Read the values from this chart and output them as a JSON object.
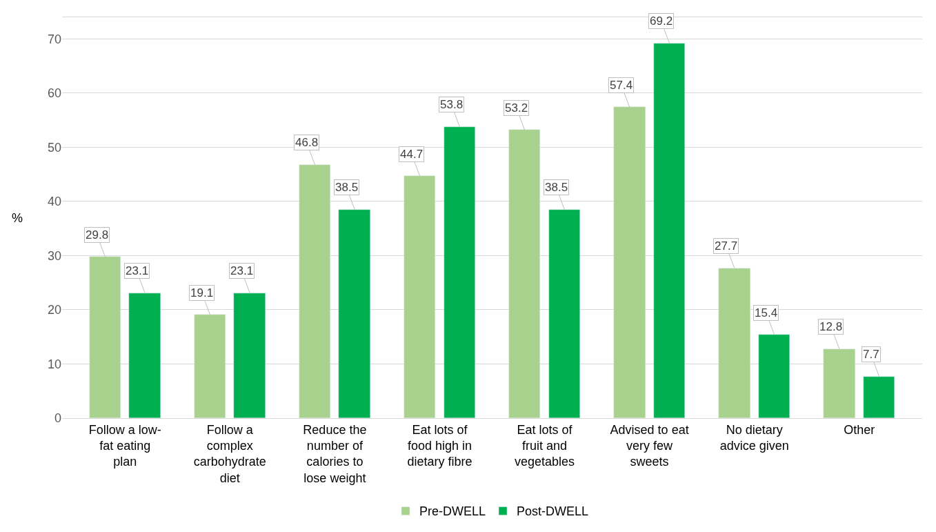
{
  "chart_data": {
    "type": "bar",
    "ylabel": "%",
    "categories": [
      "Follow a low-fat eating plan",
      "Follow a complex carbohydrate diet",
      "Reduce the number of calories to lose weight",
      "Eat lots of food high in dietary fibre",
      "Eat lots of fruit and vegetables",
      "Advised to eat very few sweets",
      "No dietary advice given",
      "Other"
    ],
    "series": [
      {
        "name": "Pre-DWELL",
        "color": "#a9d18e",
        "values": [
          29.8,
          19.1,
          46.8,
          44.7,
          53.2,
          57.4,
          27.7,
          12.8
        ]
      },
      {
        "name": "Post-DWELL",
        "color": "#00b050",
        "values": [
          23.1,
          23.1,
          38.5,
          53.8,
          38.5,
          69.2,
          15.4,
          7.7
        ]
      }
    ],
    "ylim": [
      0,
      74
    ],
    "yticks": [
      0,
      10,
      20,
      30,
      40,
      50,
      60,
      70
    ],
    "grid": "y",
    "legend": "bottom",
    "data_labels": true
  }
}
